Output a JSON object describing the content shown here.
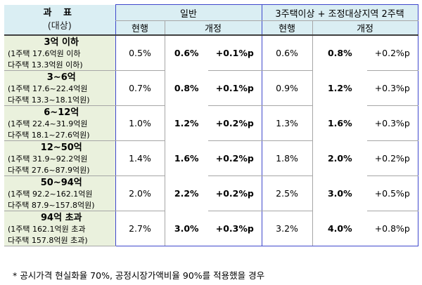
{
  "header": {
    "category": "과  표",
    "category_sub": "(대상)",
    "general": "일반",
    "multi": "3주택이상 + 조정대상지역 2주택",
    "current": "현행",
    "revised": "개정"
  },
  "rows": [
    {
      "title": "3억 이하",
      "line1": "(1주택 17.6억원 이하",
      "line2": "다주택 13.3억원 이하)",
      "g_cur": "0.5%",
      "g_new": "0.6%",
      "g_diff": "+0.1%p",
      "m_cur": "0.6%",
      "m_new": "0.8%",
      "m_diff": "+0.2%p"
    },
    {
      "title": "3~6억",
      "line1": "(1주택 17.6~22.4억원",
      "line2": "다주택 13.3~18.1억원)",
      "g_cur": "0.7%",
      "g_new": "0.8%",
      "g_diff": "+0.1%p",
      "m_cur": "0.9%",
      "m_new": "1.2%",
      "m_diff": "+0.3%p"
    },
    {
      "title": "6~12억",
      "line1": "(1주택 22.4~31.9억원",
      "line2": "다주택 18.1~27.6억원)",
      "g_cur": "1.0%",
      "g_new": "1.2%",
      "g_diff": "+0.2%p",
      "m_cur": "1.3%",
      "m_new": "1.6%",
      "m_diff": "+0.3%p"
    },
    {
      "title": "12~50억",
      "line1": "(1주택 31.9~92.2억원",
      "line2": "다주택 27.6~87.9억원)",
      "g_cur": "1.4%",
      "g_new": "1.6%",
      "g_diff": "+0.2%p",
      "m_cur": "1.8%",
      "m_new": "2.0%",
      "m_diff": "+0.2%p"
    },
    {
      "title": "50~94억",
      "line1": "(1주택 92.2~162.1억원",
      "line2": "다주택 87.9~157.8억원)",
      "g_cur": "2.0%",
      "g_new": "2.2%",
      "g_diff": "+0.2%p",
      "m_cur": "2.5%",
      "m_new": "3.0%",
      "m_diff": "+0.5%p"
    },
    {
      "title": "94억 초과",
      "line1": "(1주택 162.1억원 초과",
      "line2": "다주택 157.8억원 초과)",
      "g_cur": "2.7%",
      "g_new": "3.0%",
      "g_diff": "+0.3%p",
      "m_cur": "3.2%",
      "m_new": "4.0%",
      "m_diff": "+0.8%p"
    }
  ],
  "footnote": "* 공시가격 현실화율 70%, 공정시장가액비율 90%를 적용했을 경우"
}
